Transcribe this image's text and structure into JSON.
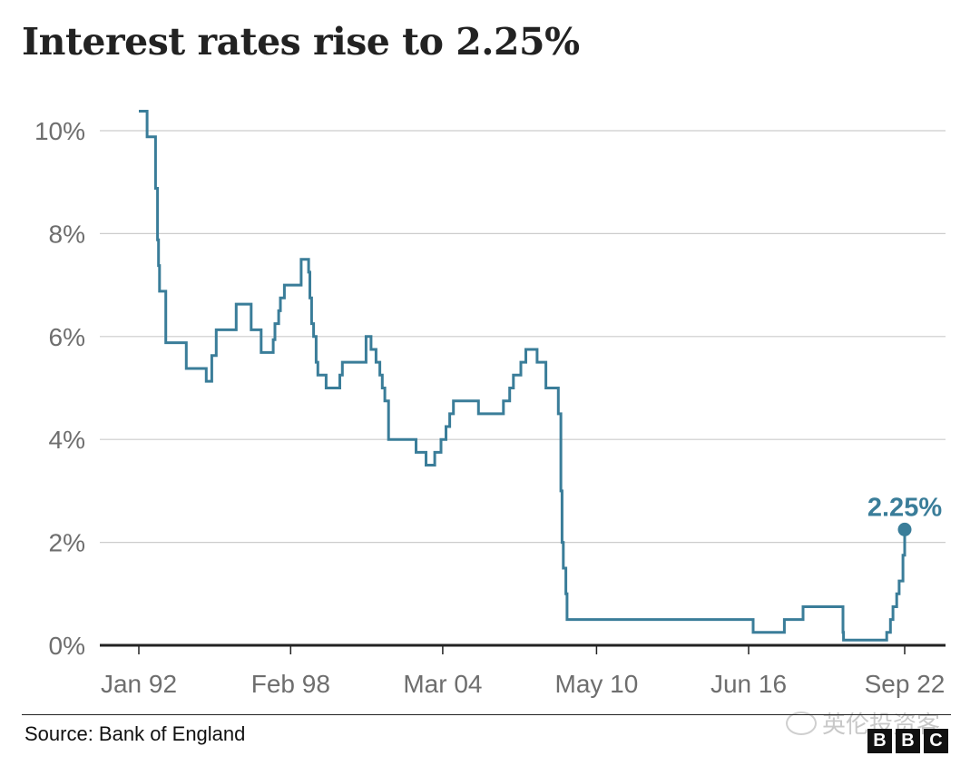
{
  "title": "Interest rates rise to 2.25%",
  "source": "Source: Bank of England",
  "watermark": "英伦投资客",
  "logo_letters": [
    "B",
    "B",
    "C"
  ],
  "colors": {
    "line": "#3a7d99",
    "grid": "#cccccc",
    "axis": "#222222",
    "tick_text": "#6e6e6e"
  },
  "chart_data": {
    "type": "line",
    "step": true,
    "title": "Interest rates rise to 2.25%",
    "xlabel": "",
    "ylabel": "",
    "ylim": [
      0,
      10
    ],
    "y_ticks": [
      0,
      2,
      4,
      6,
      8,
      10
    ],
    "y_tick_labels": [
      "0%",
      "2%",
      "4%",
      "6%",
      "8%",
      "10%"
    ],
    "x_ticks": [
      1992.0,
      1998.08,
      2004.17,
      2010.33,
      2016.42,
      2022.67
    ],
    "x_tick_labels": [
      "Jan 92",
      "Feb 98",
      "Mar 04",
      "May 10",
      "Jun 16",
      "Sep 22"
    ],
    "grid": true,
    "annotation": {
      "label": "2.25%",
      "x": 2022.67,
      "y": 2.25
    },
    "series": [
      {
        "x": [
          1992.0,
          1992.33,
          1992.67,
          1992.75,
          1992.79,
          1992.83,
          1993.08,
          1993.9,
          1994.7,
          1994.92,
          1995.1,
          1995.9,
          1996.05,
          1996.5,
          1996.9,
          1997.38,
          1997.45,
          1997.6,
          1997.67,
          1997.83,
          1998.5,
          1998.8,
          1998.85,
          1998.92,
          1999.0,
          1999.1,
          1999.17,
          1999.5,
          2000.05,
          2000.15,
          2001.1,
          2001.3,
          2001.5,
          2001.65,
          2001.75,
          2001.85,
          2002.0,
          2003.1,
          2003.5,
          2003.85,
          2004.1,
          2004.3,
          2004.45,
          2004.6,
          2005.6,
          2006.6,
          2006.85,
          2007.0,
          2007.3,
          2007.5,
          2007.95,
          2008.3,
          2008.8,
          2008.9,
          2008.95,
          2009.0,
          2009.1,
          2009.15,
          2009.2,
          2016.6,
          2017.85,
          2018.6,
          2020.2,
          2020.22,
          2021.95,
          2022.1,
          2022.2,
          2022.35,
          2022.45,
          2022.6,
          2022.67
        ],
        "y": [
          10.38,
          9.88,
          8.88,
          7.88,
          7.38,
          6.88,
          5.88,
          5.38,
          5.13,
          5.63,
          6.13,
          6.63,
          6.63,
          6.13,
          5.69,
          5.94,
          6.25,
          6.5,
          6.75,
          7.0,
          7.5,
          7.25,
          6.75,
          6.25,
          6.0,
          5.5,
          5.25,
          5.0,
          5.25,
          5.5,
          6.0,
          5.75,
          5.5,
          5.25,
          5.0,
          4.75,
          4.0,
          3.75,
          3.5,
          3.75,
          4.0,
          4.25,
          4.5,
          4.75,
          4.5,
          4.75,
          5.0,
          5.25,
          5.5,
          5.75,
          5.5,
          5.0,
          4.5,
          3.0,
          2.0,
          1.5,
          1.0,
          0.5,
          0.5,
          0.25,
          0.5,
          0.75,
          0.25,
          0.1,
          0.25,
          0.5,
          0.75,
          1.0,
          1.25,
          1.75,
          2.25
        ]
      }
    ]
  }
}
